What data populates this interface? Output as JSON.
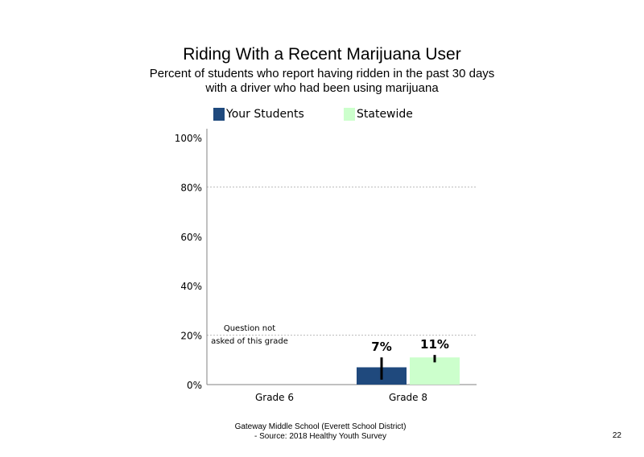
{
  "title": "Riding With a Recent Marijuana User",
  "subtitle_line1": "Percent of students who report having ridden in the past 30 days",
  "subtitle_line2": "with a driver who had been using marijuana",
  "legend": {
    "series1": "Your Students",
    "series2": "Statewide"
  },
  "colors": {
    "series1": "#1f497d",
    "series2": "#ccffcc",
    "grid": "#bbbbbb",
    "axis": "#808080"
  },
  "note": "Question not asked of this grade",
  "footer_line1": "Gateway Middle School (Everett School District)",
  "footer_line2": "- Source: 2018 Healthy Youth Survey",
  "page_number": "22",
  "chart_data": {
    "type": "bar",
    "title": "Riding With a Recent Marijuana User",
    "categories": [
      "Grade 6",
      "Grade 8"
    ],
    "series": [
      {
        "name": "Your Students",
        "values": [
          null,
          7
        ],
        "labels": [
          "",
          "7%"
        ],
        "error": [
          null,
          [
            2,
            11
          ]
        ]
      },
      {
        "name": "Statewide",
        "values": [
          null,
          11
        ],
        "labels": [
          "",
          "11%"
        ],
        "error": [
          null,
          [
            9,
            12
          ]
        ]
      }
    ],
    "y_ticks": [
      "0%",
      "20%",
      "40%",
      "60%",
      "80%",
      "100%"
    ],
    "ylim": [
      0,
      100
    ],
    "gridlines": [
      20,
      80
    ],
    "legend_position": "top",
    "xlabel": "",
    "ylabel": ""
  }
}
